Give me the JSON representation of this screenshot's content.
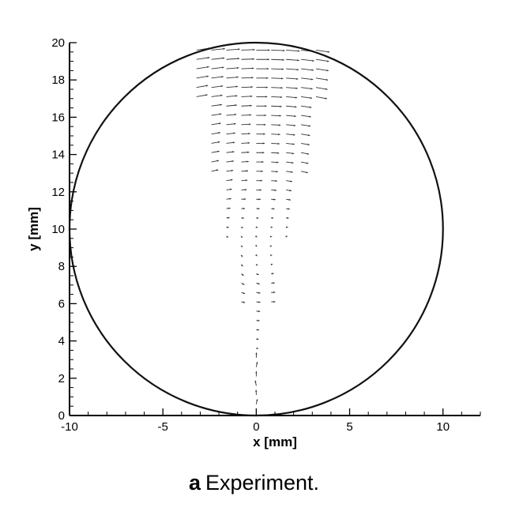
{
  "chart_data": {
    "type": "vector-field",
    "xlabel": "x [mm]",
    "ylabel": "y [mm]",
    "xlim": [
      -10,
      12
    ],
    "ylim": [
      0,
      20
    ],
    "xticks": [
      -10,
      -5,
      0,
      5,
      10
    ],
    "yticks": [
      0,
      2,
      4,
      6,
      8,
      10,
      12,
      14,
      16,
      18,
      20
    ],
    "boundary": {
      "shape": "circle",
      "center": [
        0,
        10
      ],
      "radius": 10
    },
    "grid": false,
    "field_description": "PIV velocity vectors inside a wedge from the bottom of the drop upward; vectors point mostly in +x direction near the top and form a small vortex near (0, 8)",
    "colors": {
      "axes": "#000000",
      "boundary": "#111111",
      "vectors": "#333333"
    }
  },
  "caption": {
    "letter": "a",
    "text": "Experiment."
  }
}
